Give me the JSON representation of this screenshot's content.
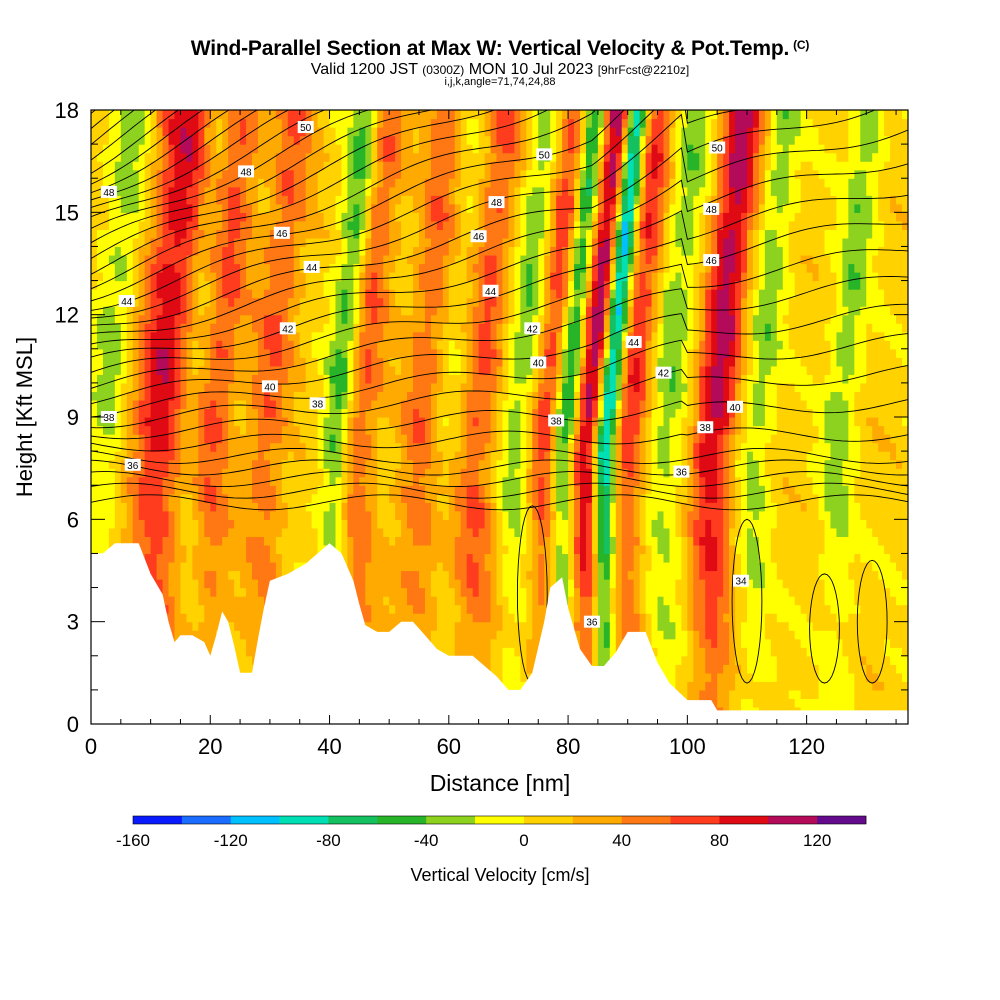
{
  "header": {
    "title": "Wind-Parallel Section at Max W: Vertical Velocity & Pot.Temp.",
    "title_units": "(C)",
    "subtitle_main": "Valid 1200 JST",
    "subtitle_utc": "(0300Z)",
    "subtitle_date": "MON 10 Jul 2023",
    "subtitle_fcst": "[9hrFcst@2210z]",
    "indices": "i,j,k,angle=71,74,24,88"
  },
  "chart_data": {
    "type": "heatmap",
    "xlabel": "Distance [nm]",
    "ylabel": "Height [Kft MSL]",
    "xlim": [
      0,
      137
    ],
    "ylim": [
      0,
      18
    ],
    "x_ticks": [
      "0",
      "20",
      "40",
      "60",
      "80",
      "100",
      "120"
    ],
    "y_ticks": [
      "0",
      "3",
      "6",
      "9",
      "12",
      "15",
      "18"
    ],
    "colorbar": {
      "label": "Vertical Velocity [cm/s]",
      "tick_labels": [
        "-160",
        "-120",
        "-80",
        "-40",
        "0",
        "40",
        "80",
        "120"
      ],
      "levels": [
        -160,
        -140,
        -120,
        -100,
        -80,
        -60,
        -40,
        -20,
        0,
        20,
        40,
        60,
        80,
        100,
        120,
        140
      ],
      "colors": [
        "#0a1aff",
        "#1a6dff",
        "#00c0ff",
        "#00e0b4",
        "#14c060",
        "#28b428",
        "#8cd21e",
        "#ffff00",
        "#ffd200",
        "#ffaa00",
        "#ff7814",
        "#ff3c1e",
        "#e00a14",
        "#b40a5a",
        "#640a8c"
      ]
    },
    "updraft_columns": [
      {
        "x": 11,
        "w": 3.5,
        "peak": 85
      },
      {
        "x": 20,
        "w": 2.5,
        "peak": 55
      },
      {
        "x": 29,
        "w": 2.5,
        "peak": 50
      },
      {
        "x": 44,
        "w": 2.5,
        "peak": 60
      },
      {
        "x": 55,
        "w": 2.5,
        "peak": 55
      },
      {
        "x": 64,
        "w": 2.5,
        "peak": 60
      },
      {
        "x": 76,
        "w": 2.0,
        "peak": 70
      },
      {
        "x": 83,
        "w": 1.8,
        "peak": 110
      },
      {
        "x": 90,
        "w": 2.0,
        "peak": 70
      },
      {
        "x": 104,
        "w": 2.5,
        "peak": 100
      }
    ],
    "downdraft_columns": [
      {
        "x": 2,
        "w": 2.5,
        "peak": -35
      },
      {
        "x": 16,
        "w": 2.0,
        "peak": -30
      },
      {
        "x": 41,
        "w": 1.8,
        "peak": -75
      },
      {
        "x": 59,
        "w": 3.0,
        "peak": -25
      },
      {
        "x": 71,
        "w": 2.0,
        "peak": -45
      },
      {
        "x": 79,
        "w": 1.5,
        "peak": -90
      },
      {
        "x": 86,
        "w": 1.3,
        "peak": -140
      },
      {
        "x": 96,
        "w": 2.5,
        "peak": -40
      },
      {
        "x": 111,
        "w": 2.0,
        "peak": -40
      },
      {
        "x": 125,
        "w": 2.0,
        "peak": -40
      }
    ],
    "terrain": [
      [
        0,
        5.0
      ],
      [
        2,
        5.0
      ],
      [
        4,
        5.3
      ],
      [
        8,
        5.3
      ],
      [
        10,
        4.4
      ],
      [
        12,
        3.8
      ],
      [
        13,
        3.0
      ],
      [
        14,
        2.4
      ],
      [
        15,
        2.6
      ],
      [
        17,
        2.6
      ],
      [
        19,
        2.4
      ],
      [
        20,
        2.0
      ],
      [
        21,
        2.6
      ],
      [
        22,
        3.3
      ],
      [
        23,
        3.0
      ],
      [
        24,
        2.3
      ],
      [
        25,
        1.5
      ],
      [
        27,
        1.5
      ],
      [
        28,
        2.5
      ],
      [
        29,
        3.4
      ],
      [
        30,
        4.2
      ],
      [
        33,
        4.4
      ],
      [
        36,
        4.7
      ],
      [
        38,
        5.0
      ],
      [
        40,
        5.3
      ],
      [
        42,
        5.0
      ],
      [
        44,
        4.2
      ],
      [
        45,
        3.5
      ],
      [
        46,
        2.9
      ],
      [
        48,
        2.7
      ],
      [
        50,
        2.7
      ],
      [
        52,
        3.0
      ],
      [
        54,
        3.0
      ],
      [
        56,
        2.6
      ],
      [
        58,
        2.2
      ],
      [
        60,
        2.0
      ],
      [
        64,
        2.0
      ],
      [
        66,
        1.7
      ],
      [
        68,
        1.4
      ],
      [
        70,
        1.0
      ],
      [
        72,
        1.0
      ],
      [
        74,
        1.5
      ],
      [
        76,
        3.0
      ],
      [
        77,
        4.0
      ],
      [
        79,
        4.3
      ],
      [
        80,
        3.4
      ],
      [
        82,
        2.2
      ],
      [
        84,
        1.7
      ],
      [
        86,
        1.7
      ],
      [
        88,
        2.1
      ],
      [
        90,
        2.7
      ],
      [
        93,
        2.7
      ],
      [
        95,
        1.8
      ],
      [
        97,
        1.2
      ],
      [
        100,
        0.7
      ],
      [
        104,
        0.7
      ],
      [
        105,
        0.4
      ],
      [
        137,
        0.4
      ]
    ],
    "theta_labels": [
      {
        "x": 36,
        "y": 17.5,
        "label": "50"
      },
      {
        "x": 76,
        "y": 16.7,
        "label": "50"
      },
      {
        "x": 105,
        "y": 16.9,
        "label": "50"
      },
      {
        "x": 26,
        "y": 16.2,
        "label": "48"
      },
      {
        "x": 3,
        "y": 15.6,
        "label": "48"
      },
      {
        "x": 68,
        "y": 15.3,
        "label": "48"
      },
      {
        "x": 104,
        "y": 15.1,
        "label": "48"
      },
      {
        "x": 32,
        "y": 14.4,
        "label": "46"
      },
      {
        "x": 65,
        "y": 14.3,
        "label": "46"
      },
      {
        "x": 104,
        "y": 13.6,
        "label": "46"
      },
      {
        "x": 37,
        "y": 13.4,
        "label": "44"
      },
      {
        "x": 67,
        "y": 12.7,
        "label": "44"
      },
      {
        "x": 6,
        "y": 12.4,
        "label": "44"
      },
      {
        "x": 91,
        "y": 11.2,
        "label": "44"
      },
      {
        "x": 33,
        "y": 11.6,
        "label": "42"
      },
      {
        "x": 74,
        "y": 11.6,
        "label": "42"
      },
      {
        "x": 96,
        "y": 10.3,
        "label": "42"
      },
      {
        "x": 30,
        "y": 9.9,
        "label": "40"
      },
      {
        "x": 75,
        "y": 10.6,
        "label": "40"
      },
      {
        "x": 108,
        "y": 9.3,
        "label": "40"
      },
      {
        "x": 38,
        "y": 9.4,
        "label": "38"
      },
      {
        "x": 3,
        "y": 9.0,
        "label": "38"
      },
      {
        "x": 78,
        "y": 8.9,
        "label": "38"
      },
      {
        "x": 103,
        "y": 8.7,
        "label": "38"
      },
      {
        "x": 7,
        "y": 7.6,
        "label": "36"
      },
      {
        "x": 99,
        "y": 7.4,
        "label": "36"
      },
      {
        "x": 84,
        "y": 3.0,
        "label": "36"
      },
      {
        "x": 109,
        "y": 4.2,
        "label": "34"
      }
    ]
  }
}
